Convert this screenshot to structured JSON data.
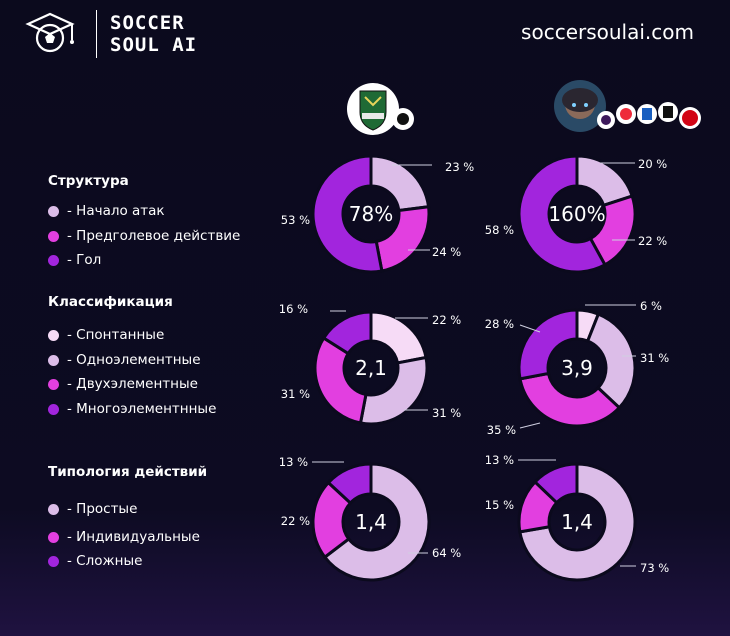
{
  "brand": {
    "line1": "SOCCER",
    "line2": "SOUL AI",
    "site": "soccersoulai.com"
  },
  "colors": {
    "very_light": "#f6dbf6",
    "light": "#dcbde8",
    "magenta": "#e23fe0",
    "purple": "#a225dd",
    "background": "#0b0a1d"
  },
  "icons": [
    "soccer-ball-logo-icon",
    "team-crest-icon",
    "ai-avatar-league-logos-icon"
  ],
  "sections": [
    {
      "title": "Структура",
      "legend": [
        {
          "label": "- Начало атак",
          "color": "#dcbde8"
        },
        {
          "label": "- Предголевое действие",
          "color": "#e23fe0"
        },
        {
          "label": "- Гол",
          "color": "#a225dd"
        }
      ]
    },
    {
      "title": "Классификация",
      "legend": [
        {
          "label": "- Спонтанные",
          "color": "#f6dbf6"
        },
        {
          "label": "- Одноэлементные",
          "color": "#dcbde8"
        },
        {
          "label": "- Двухэлементные",
          "color": "#e23fe0"
        },
        {
          "label": "- Многоэлементнные",
          "color": "#a225dd"
        }
      ]
    },
    {
      "title": "Типология действий",
      "legend": [
        {
          "label": "- Простые",
          "color": "#dcbde8"
        },
        {
          "label": "- Индивидуальные",
          "color": "#e23fe0"
        },
        {
          "label": "- Сложные",
          "color": "#a225dd"
        }
      ]
    }
  ],
  "chart_data": [
    {
      "type": "pie",
      "section": "Структура",
      "column": "team",
      "center_label": "78%",
      "slices": [
        {
          "category": "Начало атак",
          "value": 23,
          "label": "23 %"
        },
        {
          "category": "Предголевое действие",
          "value": 24,
          "label": "24 %"
        },
        {
          "category": "Гол",
          "value": 53,
          "label": "53 %"
        }
      ]
    },
    {
      "type": "pie",
      "section": "Структура",
      "column": "ai",
      "center_label": "160%",
      "slices": [
        {
          "category": "Начало атак",
          "value": 20,
          "label": "20 %"
        },
        {
          "category": "Предголевое действие",
          "value": 22,
          "label": "22 %"
        },
        {
          "category": "Гол",
          "value": 58,
          "label": "58 %"
        }
      ]
    },
    {
      "type": "pie",
      "section": "Классификация",
      "column": "team",
      "center_label": "2,1",
      "slices": [
        {
          "category": "Спонтанные",
          "value": 22,
          "label": "22 %"
        },
        {
          "category": "Одноэлементные",
          "value": 31,
          "label": "31 %"
        },
        {
          "category": "Двухэлементные",
          "value": 31,
          "label": "31 %"
        },
        {
          "category": "Многоэлементнные",
          "value": 16,
          "label": "16 %"
        }
      ]
    },
    {
      "type": "pie",
      "section": "Классификация",
      "column": "ai",
      "center_label": "3,9",
      "slices": [
        {
          "category": "Спонтанные",
          "value": 6,
          "label": "6 %"
        },
        {
          "category": "Одноэлементные",
          "value": 31,
          "label": "31 %"
        },
        {
          "category": "Двухэлементные",
          "value": 35,
          "label": "35 %"
        },
        {
          "category": "Многоэлементнные",
          "value": 28,
          "label": "28 %"
        }
      ]
    },
    {
      "type": "pie",
      "section": "Типология действий",
      "column": "team",
      "center_label": "1,4",
      "slices": [
        {
          "category": "Простые",
          "value": 64,
          "label": "64 %"
        },
        {
          "category": "Индивидуальные",
          "value": 22,
          "label": "22 %"
        },
        {
          "category": "Сложные",
          "value": 13,
          "label": "13 %"
        }
      ]
    },
    {
      "type": "pie",
      "section": "Типология действий",
      "column": "ai",
      "center_label": "1,4",
      "slices": [
        {
          "category": "Простые",
          "value": 73,
          "label": "73 %"
        },
        {
          "category": "Индивидуальные",
          "value": 15,
          "label": "15 %"
        },
        {
          "category": "Сложные",
          "value": 13,
          "label": "13 %"
        }
      ]
    }
  ]
}
